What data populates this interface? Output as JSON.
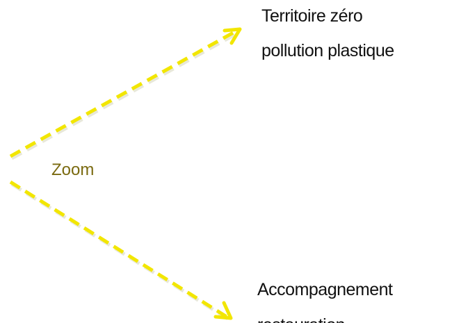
{
  "nodes": [
    {
      "lines": [
        "Territoire zéro",
        "pollution plastique"
      ]
    },
    {
      "lines": [
        "Zoom"
      ]
    },
    {
      "lines": [
        "Accompagnement",
        "restauration"
      ]
    }
  ]
}
